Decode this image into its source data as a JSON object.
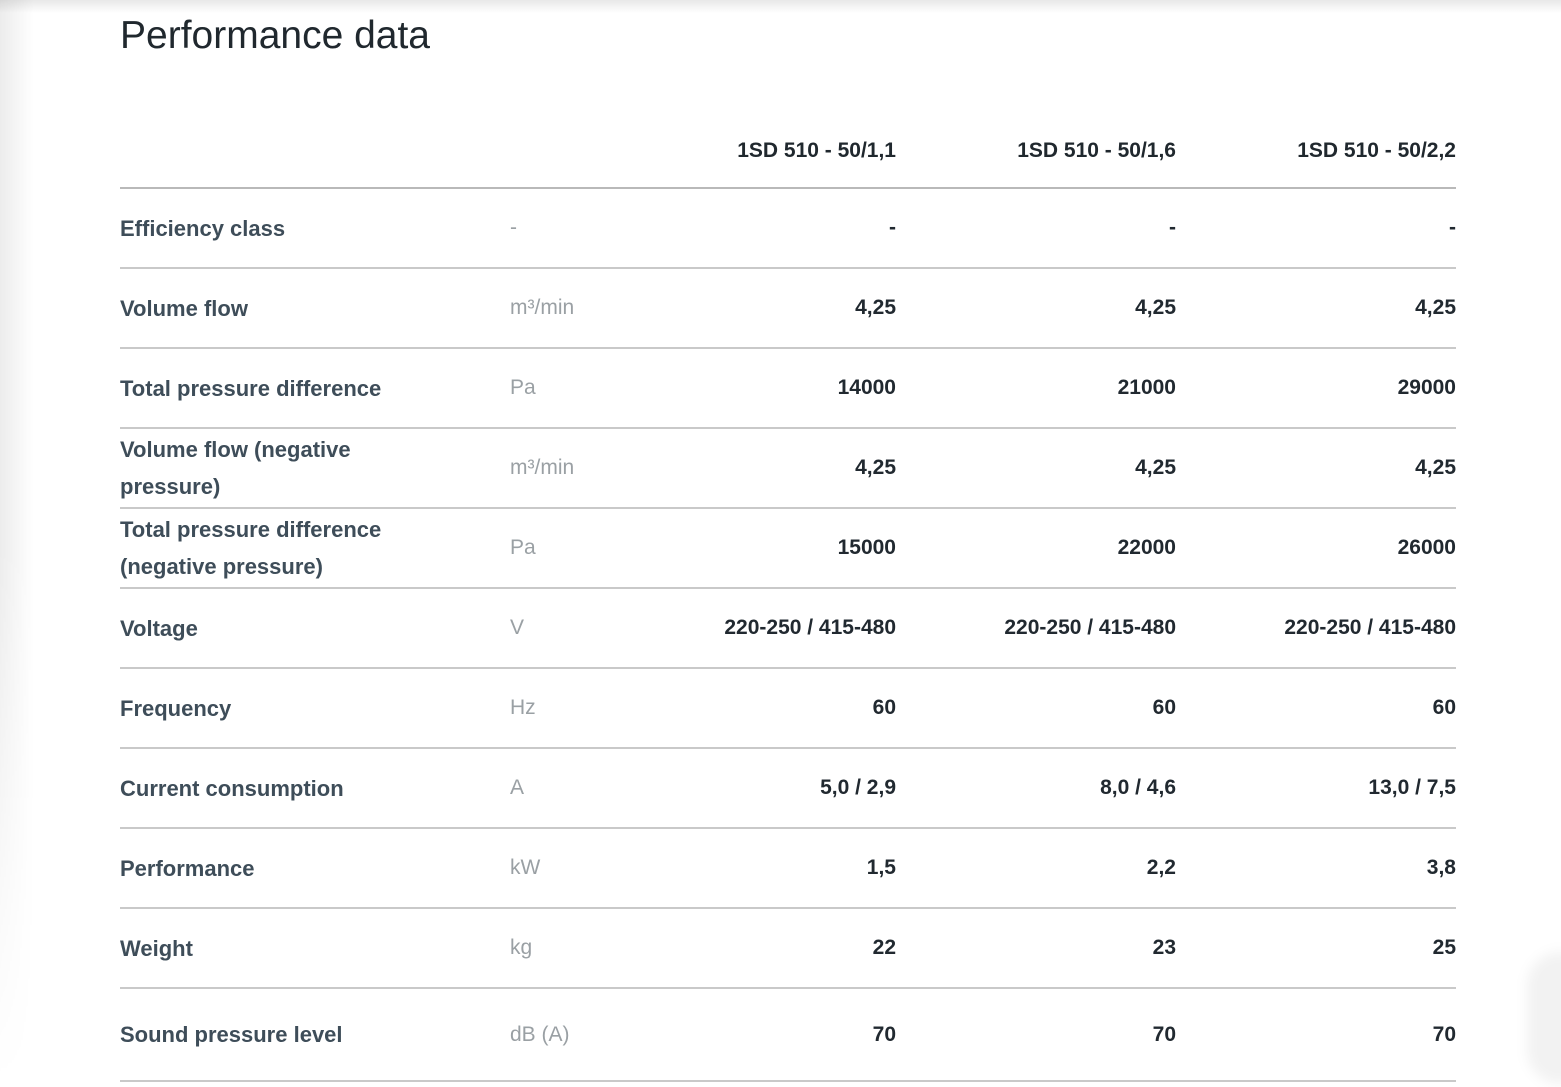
{
  "page": {
    "title": "Performance data"
  },
  "table": {
    "columns": [
      "1SD 510 - 50/1,1",
      "1SD 510 - 50/1,6",
      "1SD 510 - 50/2,2"
    ],
    "rows": [
      {
        "label": "Efficiency class",
        "unit": "-",
        "values": [
          "-",
          "-",
          "-"
        ]
      },
      {
        "label": "Volume flow",
        "unit": "m³/min",
        "values": [
          "4,25",
          "4,25",
          "4,25"
        ]
      },
      {
        "label": "Total pressure difference",
        "unit": "Pa",
        "values": [
          "14000",
          "21000",
          "29000"
        ]
      },
      {
        "label": "Volume flow (negative pressure)",
        "unit": "m³/min",
        "values": [
          "4,25",
          "4,25",
          "4,25"
        ]
      },
      {
        "label": "Total pressure difference (negative pressure)",
        "unit": "Pa",
        "values": [
          "15000",
          "22000",
          "26000"
        ]
      },
      {
        "label": "Voltage",
        "unit": "V",
        "values": [
          "220-250 / 415-480",
          "220-250 / 415-480",
          "220-250 / 415-480"
        ]
      },
      {
        "label": "Frequency",
        "unit": "Hz",
        "values": [
          "60",
          "60",
          "60"
        ]
      },
      {
        "label": "Current consumption",
        "unit": "A",
        "values": [
          "5,0 / 2,9",
          "8,0 / 4,6",
          "13,0 / 7,5"
        ]
      },
      {
        "label": "Performance",
        "unit": "kW",
        "values": [
          "1,5",
          "2,2",
          "3,8"
        ]
      },
      {
        "label": "Weight",
        "unit": "kg",
        "values": [
          "22",
          "23",
          "25"
        ]
      },
      {
        "label": "Sound pressure level",
        "unit": "dB (A)",
        "values": [
          "70",
          "70",
          "70"
        ]
      }
    ]
  },
  "colors": {
    "heading_text": "#20282e",
    "label_text": "#3e4d59",
    "unit_text": "#9aa0a4",
    "value_text": "#212930",
    "header_divider": "#b9b9b9",
    "row_divider": "#c9c9c9",
    "background": "#ffffff"
  }
}
